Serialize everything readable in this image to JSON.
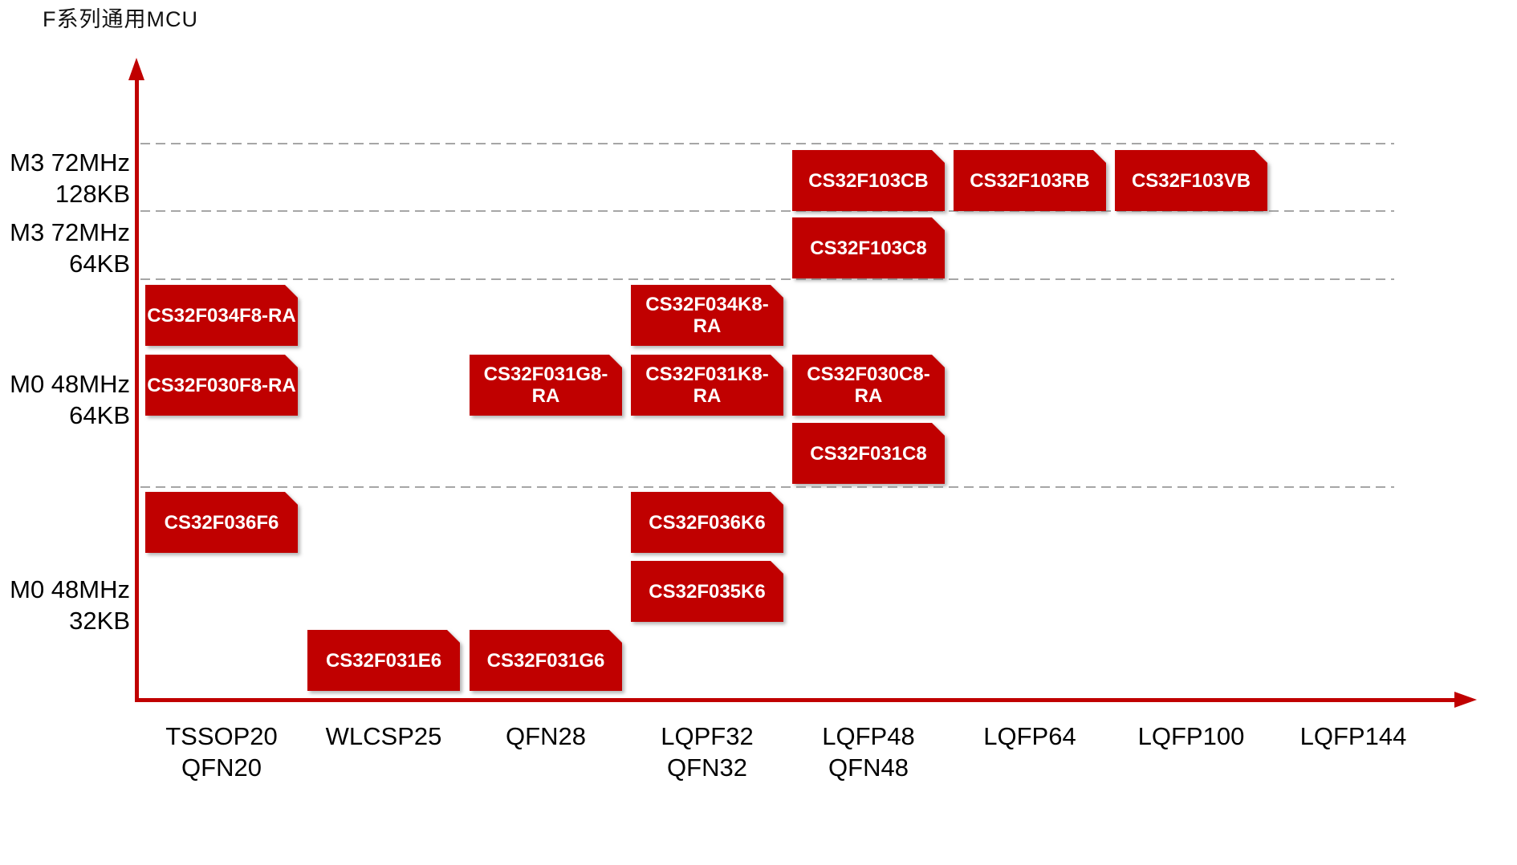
{
  "title": "F系列通用MCU",
  "chart_data": {
    "type": "matrix",
    "title": "F系列通用MCU",
    "legend": "none",
    "grid": "dashed horizontal tier separators",
    "colors": {
      "box": "#C00000",
      "box_text": "#FFFFFF",
      "axis": "#C00000",
      "gridline": "#A6A6A6",
      "label_text": "#000000"
    },
    "x_axis": {
      "categories": [
        {
          "lines": [
            "TSSOP20",
            "QFN20"
          ]
        },
        {
          "lines": [
            "WLCSP25"
          ]
        },
        {
          "lines": [
            "QFN28"
          ]
        },
        {
          "lines": [
            "LQPF32",
            "QFN32"
          ]
        },
        {
          "lines": [
            "LQFP48",
            "QFN48"
          ]
        },
        {
          "lines": [
            "LQFP64"
          ]
        },
        {
          "lines": [
            "LQFP100"
          ]
        },
        {
          "lines": [
            "LQFP144"
          ]
        }
      ]
    },
    "y_axis": {
      "tiers": [
        {
          "lines": [
            "M3 72MHz",
            "128KB"
          ]
        },
        {
          "lines": [
            "M3 72MHz",
            "64KB"
          ]
        },
        {
          "lines": [
            "M0 48MHz",
            "64KB"
          ]
        },
        {
          "lines": [
            "M0 48MHz",
            "32KB"
          ]
        }
      ]
    },
    "parts": [
      {
        "name": "CS32F103CB",
        "lines": [
          "CS32F103CB"
        ],
        "package": "LQFP48/QFN48",
        "tier": "M3 72MHz 128KB",
        "col": 4,
        "shelf": 0
      },
      {
        "name": "CS32F103RB",
        "lines": [
          "CS32F103RB"
        ],
        "package": "LQFP64",
        "tier": "M3 72MHz 128KB",
        "col": 5,
        "shelf": 0
      },
      {
        "name": "CS32F103VB",
        "lines": [
          "CS32F103VB"
        ],
        "package": "LQFP100",
        "tier": "M3 72MHz 128KB",
        "col": 6,
        "shelf": 0
      },
      {
        "name": "CS32F103C8",
        "lines": [
          "CS32F103C8"
        ],
        "package": "LQFP48/QFN48",
        "tier": "M3 72MHz 64KB",
        "col": 4,
        "shelf": 1
      },
      {
        "name": "CS32F034F8-RA",
        "lines": [
          "CS32F034F8-RA"
        ],
        "package": "TSSOP20/QFN20",
        "tier": "M0 48MHz 64KB",
        "col": 0,
        "shelf": 2
      },
      {
        "name": "CS32F034K8-RA",
        "lines": [
          "CS32F034K8-",
          "RA"
        ],
        "package": "LQPF32/QFN32",
        "tier": "M0 48MHz 64KB",
        "col": 3,
        "shelf": 2
      },
      {
        "name": "CS32F030F8-RA",
        "lines": [
          "CS32F030F8-RA"
        ],
        "package": "TSSOP20/QFN20",
        "tier": "M0 48MHz 64KB",
        "col": 0,
        "shelf": 3
      },
      {
        "name": "CS32F031G8-RA",
        "lines": [
          "CS32F031G8-",
          "RA"
        ],
        "package": "QFN28",
        "tier": "M0 48MHz 64KB",
        "col": 2,
        "shelf": 3
      },
      {
        "name": "CS32F031K8-RA",
        "lines": [
          "CS32F031K8-",
          "RA"
        ],
        "package": "LQPF32/QFN32",
        "tier": "M0 48MHz 64KB",
        "col": 3,
        "shelf": 3
      },
      {
        "name": "CS32F030C8-RA",
        "lines": [
          "CS32F030C8-",
          "RA"
        ],
        "package": "LQFP48/QFN48",
        "tier": "M0 48MHz 64KB",
        "col": 4,
        "shelf": 3
      },
      {
        "name": "CS32F031C8",
        "lines": [
          "CS32F031C8"
        ],
        "package": "LQFP48/QFN48",
        "tier": "M0 48MHz 64KB",
        "col": 4,
        "shelf": 4
      },
      {
        "name": "CS32F036F6",
        "lines": [
          "CS32F036F6"
        ],
        "package": "TSSOP20/QFN20",
        "tier": "M0 48MHz 32KB",
        "col": 0,
        "shelf": 5
      },
      {
        "name": "CS32F036K6",
        "lines": [
          "CS32F036K6"
        ],
        "package": "LQPF32/QFN32",
        "tier": "M0 48MHz 32KB",
        "col": 3,
        "shelf": 5
      },
      {
        "name": "CS32F035K6",
        "lines": [
          "CS32F035K6"
        ],
        "package": "LQPF32/QFN32",
        "tier": "M0 48MHz 32KB",
        "col": 3,
        "shelf": 6
      },
      {
        "name": "CS32F031E6",
        "lines": [
          "CS32F031E6"
        ],
        "package": "WLCSP25",
        "tier": "M0 48MHz 32KB",
        "col": 1,
        "shelf": 7
      },
      {
        "name": "CS32F031G6",
        "lines": [
          "CS32F031G6"
        ],
        "package": "QFN28",
        "tier": "M0 48MHz 32KB",
        "col": 2,
        "shelf": 7
      }
    ]
  }
}
